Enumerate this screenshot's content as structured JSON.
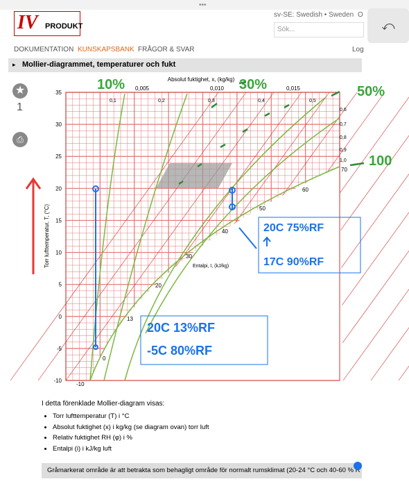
{
  "header": {
    "logo": "IV",
    "logo_sub": "PRODUKT",
    "language": "sv-SE: Swedish • Sweden",
    "cut_link": "O",
    "search_placeholder": "Sök..."
  },
  "nav": {
    "items": [
      "DOKUMENTATION",
      "KUNSKAPSBANK",
      "FRÅGOR & SVAR"
    ],
    "login": "Log"
  },
  "section_title": "Mollier-diagrammet, temperaturer och fukt",
  "sidebar": {
    "count": "1"
  },
  "diagram": {
    "top_label": "Absolut fuktighet, x, (kg/kg)",
    "y_label": "Torr lufttemperatur, T, (°C)",
    "enthalpy_label": "Entalpi, I, (kJ/kg)",
    "x_ticks": [
      "0,005",
      "0,010",
      "0,015"
    ],
    "y_ticks": [
      "35",
      "30",
      "25",
      "20",
      "15",
      "10",
      "5",
      "0",
      "-5",
      "-10"
    ],
    "enthalpy_ticks": [
      "-10",
      "0",
      "13",
      "20",
      "30",
      "40",
      "50",
      "60",
      "70"
    ],
    "rh_ticks": [
      "0,1",
      "0,2",
      "0,3",
      "0,4",
      "0,5",
      "0,6",
      "0,7",
      "0,8",
      "0,9",
      "1,0"
    ]
  },
  "annotations": {
    "rh": [
      "10%",
      "30%",
      "50%",
      "100"
    ],
    "box_upper": [
      "20C 75%RF",
      "17C 90%RF"
    ],
    "box_lower": [
      "20C 13%RF",
      "-5C 80%RF"
    ]
  },
  "body": {
    "intro": "I detta förenklade Mollier-diagram visas:",
    "bullets": [
      "Torr lufttemperatur (T) i °C",
      "Absolut fuktighet (x) i kg/kg (se diagram ovan) torr luft",
      "Relativ fuktighet RH (φ) i %",
      "Entalpi (i) i kJ/kg luft"
    ],
    "note": "Gråmarkerat område är att betrakta som behagligt område för normalt rumsklimat (20-24 °C och 40-60 % R"
  }
}
